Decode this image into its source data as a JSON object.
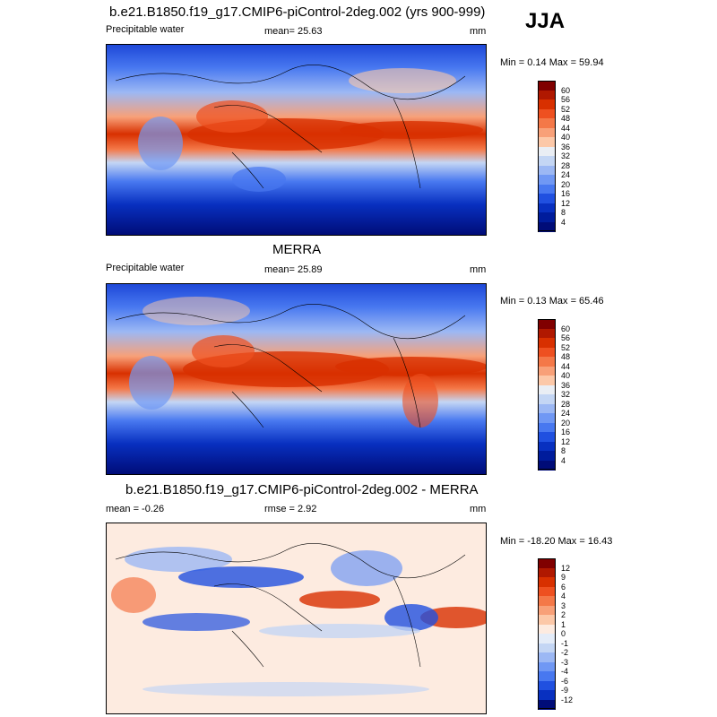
{
  "season": "JJA",
  "panels": [
    {
      "id": "model",
      "title": "b.e21.B1850.f19_g17.CMIP6-piControl-2deg.002 (yrs 900-999)",
      "left_label": "Precipitable water",
      "center_label": "mean=  25.63",
      "units": "mm",
      "minmax": "Min =  0.14 Max =  59.94",
      "type": "abs"
    },
    {
      "id": "obs",
      "title": "MERRA",
      "left_label": "Precipitable water",
      "center_label": "mean=  25.89",
      "units": "mm",
      "minmax": "Min =  0.13 Max =  65.46",
      "type": "abs"
    },
    {
      "id": "diff",
      "title": "b.e21.B1850.f19_g17.CMIP6-piControl-2deg.002 - MERRA",
      "left_label": "mean =  -0.26",
      "center_label": "rmse =   2.92",
      "units": "mm",
      "minmax": "Min = -18.20 Max =  16.43",
      "type": "diff"
    }
  ],
  "colorbars": {
    "abs": {
      "labels": [
        "60",
        "56",
        "52",
        "48",
        "44",
        "40",
        "36",
        "32",
        "28",
        "24",
        "20",
        "16",
        "12",
        "8",
        "4"
      ],
      "colors": [
        "#800000",
        "#b01800",
        "#d83000",
        "#ee5020",
        "#f47848",
        "#f8a078",
        "#fcc8a8",
        "#eaeef4",
        "#c4d6f4",
        "#9cb8f4",
        "#7098f4",
        "#4878f0",
        "#2050e0",
        "#0830c0",
        "#001c9c",
        "#000c78"
      ]
    },
    "diff": {
      "labels": [
        "12",
        "9",
        "6",
        "4",
        "3",
        "2",
        "1",
        "0",
        "-1",
        "-2",
        "-3",
        "-4",
        "-6",
        "-9",
        "-12"
      ],
      "colors": [
        "#800000",
        "#b01800",
        "#d83000",
        "#ee5020",
        "#f47848",
        "#f8a078",
        "#fcc8a8",
        "#fdebe0",
        "#e4ecf8",
        "#c4d6f4",
        "#9cb8f4",
        "#7098f4",
        "#4878f0",
        "#2050e0",
        "#0830c0",
        "#000c78"
      ]
    }
  }
}
